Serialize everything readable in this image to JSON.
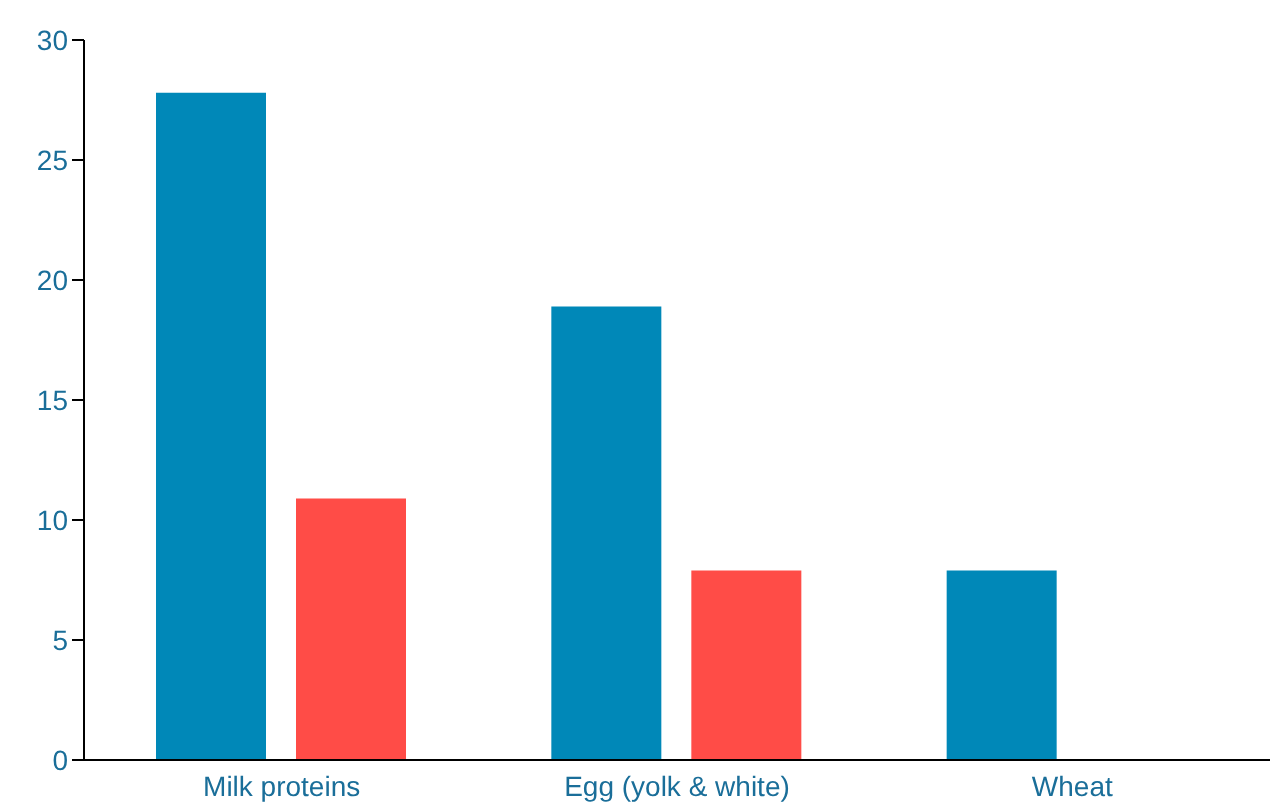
{
  "chart_data": {
    "type": "bar",
    "categories": [
      "Milk proteins",
      "Egg (yolk & white)",
      "Wheat"
    ],
    "series": [
      {
        "color": "#0088b8",
        "values": [
          27.8,
          18.9,
          7.9
        ]
      },
      {
        "color": "#ff4c47",
        "values": [
          10.9,
          7.9,
          null
        ]
      }
    ],
    "ylim": [
      0,
      30
    ],
    "yticks": [
      0,
      5,
      10,
      15,
      20,
      25,
      30
    ],
    "grid": false,
    "legend": false
  }
}
